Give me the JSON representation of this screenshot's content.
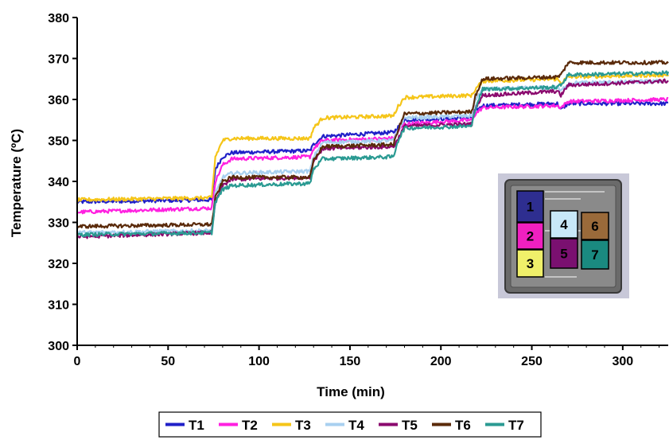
{
  "chart_data": {
    "type": "line",
    "title": "",
    "xlabel": "Time (min)",
    "ylabel": "Temperature (ºC)",
    "xlim": [
      0,
      325
    ],
    "ylim": [
      300,
      380
    ],
    "x_ticks": [
      0,
      50,
      100,
      150,
      200,
      250,
      300
    ],
    "y_ticks": [
      300,
      310,
      320,
      330,
      340,
      350,
      360,
      370,
      380
    ],
    "grid": false,
    "legend_position": "bottom",
    "step_times": [
      75,
      129,
      175,
      218,
      265
    ],
    "series": [
      {
        "name": "T1",
        "color": "#2020c8",
        "x": [
          0,
          74,
          76,
          80,
          85,
          128,
          130,
          135,
          174,
          176,
          180,
          217,
          219,
          223,
          264,
          266,
          270,
          325
        ],
        "values": [
          335,
          335.5,
          343,
          346,
          347,
          347.5,
          349,
          351,
          352,
          353,
          355,
          355.5,
          357,
          358.5,
          359,
          357.5,
          359,
          359
        ]
      },
      {
        "name": "T2",
        "color": "#ff20e0",
        "x": [
          0,
          74,
          76,
          80,
          85,
          128,
          130,
          135,
          174,
          176,
          180,
          217,
          219,
          223,
          264,
          266,
          270,
          325
        ],
        "values": [
          332.5,
          333.5,
          340,
          344,
          345.5,
          346,
          348,
          350,
          350.5,
          352,
          354,
          355,
          356.5,
          358,
          358.5,
          358,
          359.5,
          360
        ]
      },
      {
        "name": "T3",
        "color": "#f5c518",
        "x": [
          0,
          74,
          76,
          80,
          85,
          128,
          130,
          135,
          174,
          176,
          180,
          217,
          219,
          223,
          264,
          266,
          270,
          325
        ],
        "values": [
          335.5,
          336,
          346,
          350,
          350.5,
          350.5,
          353,
          355.5,
          356,
          358,
          360.5,
          361,
          362.5,
          364.5,
          365,
          364,
          365.5,
          366
        ]
      },
      {
        "name": "T4",
        "color": "#a8d0f0",
        "x": [
          0,
          74,
          76,
          80,
          85,
          128,
          130,
          135,
          174,
          176,
          180,
          217,
          219,
          223,
          264,
          266,
          270,
          325
        ],
        "values": [
          327.5,
          328,
          337,
          341,
          342,
          342.5,
          346,
          349.5,
          350,
          352,
          355.5,
          356,
          360,
          362.5,
          363,
          362,
          364,
          364.5
        ]
      },
      {
        "name": "T5",
        "color": "#8b0a6e",
        "x": [
          0,
          74,
          76,
          80,
          85,
          128,
          130,
          135,
          174,
          176,
          180,
          217,
          219,
          223,
          264,
          266,
          270,
          325
        ],
        "values": [
          326.5,
          327.5,
          335,
          339,
          340.5,
          341,
          345,
          348,
          348.5,
          350,
          353.5,
          354,
          358,
          361,
          362,
          361,
          363.5,
          364.5
        ]
      },
      {
        "name": "T6",
        "color": "#5a2a0a",
        "x": [
          0,
          74,
          76,
          80,
          85,
          128,
          130,
          135,
          174,
          176,
          180,
          217,
          219,
          223,
          264,
          266,
          270,
          325
        ],
        "values": [
          329,
          329.5,
          336,
          340,
          341,
          341,
          345,
          348.5,
          349,
          352,
          356.5,
          357,
          361,
          365,
          365.5,
          366,
          369,
          369
        ]
      },
      {
        "name": "T7",
        "color": "#2a9a92",
        "x": [
          0,
          74,
          76,
          80,
          85,
          128,
          130,
          135,
          174,
          176,
          180,
          217,
          219,
          223,
          264,
          266,
          270,
          325
        ],
        "values": [
          327,
          327.5,
          335,
          338,
          339,
          339.5,
          343,
          345.5,
          346,
          349.5,
          353,
          353.5,
          358,
          362.5,
          363,
          363.5,
          366,
          366.5
        ]
      }
    ]
  },
  "inset": {
    "blocks": [
      {
        "label": "1",
        "color": "#2e2e90"
      },
      {
        "label": "2",
        "color": "#f020c0"
      },
      {
        "label": "3",
        "color": "#f0f06a"
      },
      {
        "label": "4",
        "color": "#c8e8f8"
      },
      {
        "label": "5",
        "color": "#7a1070"
      },
      {
        "label": "6",
        "color": "#9a6a3a"
      },
      {
        "label": "7",
        "color": "#1a8a80"
      }
    ]
  }
}
